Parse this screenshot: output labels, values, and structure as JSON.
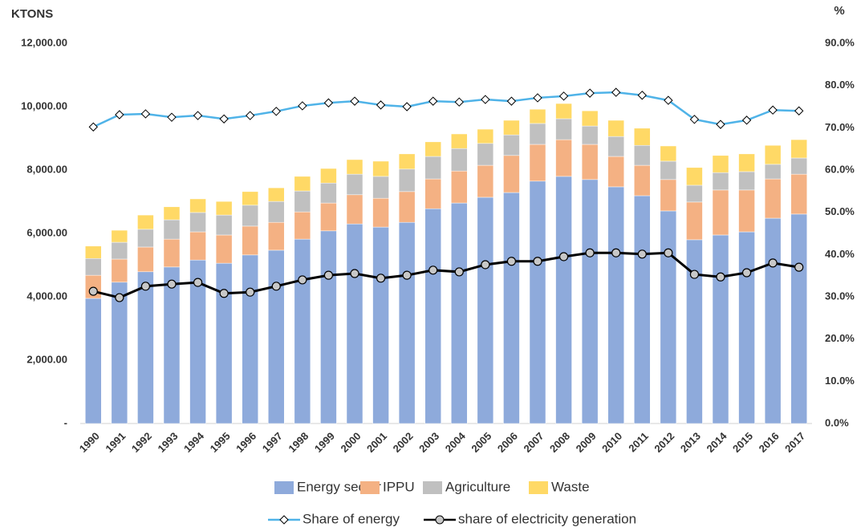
{
  "chart_data": {
    "type": "bar",
    "y_label": "KTONS",
    "y2_label": "%",
    "categories": [
      "1990",
      "1991",
      "1992",
      "1993",
      "1994",
      "1995",
      "1996",
      "1997",
      "1998",
      "1999",
      "2000",
      "2001",
      "2002",
      "2003",
      "2004",
      "2005",
      "2006",
      "2007",
      "2008",
      "2009",
      "2010",
      "2011",
      "2012",
      "2013",
      "2014",
      "2015",
      "2016",
      "2017"
    ],
    "ylim": [
      0,
      12000
    ],
    "yticks": [
      {
        "value": 0,
        "label": "-"
      },
      {
        "value": 2000,
        "label": "2,000.00"
      },
      {
        "value": 4000,
        "label": "4,000.00"
      },
      {
        "value": 6000,
        "label": "6,000.00"
      },
      {
        "value": 8000,
        "label": "8,000.00"
      },
      {
        "value": 10000,
        "label": "10,000.00"
      },
      {
        "value": 12000,
        "label": "12,000.00"
      }
    ],
    "y2lim": [
      0,
      90
    ],
    "y2ticks": [
      {
        "value": 0,
        "label": "0.0%"
      },
      {
        "value": 10,
        "label": "10.0%"
      },
      {
        "value": 20,
        "label": "20.0%"
      },
      {
        "value": 30,
        "label": "30.0%"
      },
      {
        "value": 40,
        "label": "40.0%"
      },
      {
        "value": 50,
        "label": "50.0%"
      },
      {
        "value": 60,
        "label": "60.0%"
      },
      {
        "value": 70,
        "label": "70.0%"
      },
      {
        "value": 80,
        "label": "80.0%"
      },
      {
        "value": 90,
        "label": "90.0%"
      }
    ],
    "grid": false,
    "series": [
      {
        "name": "Energy sector",
        "type": "bar",
        "color": "#8eaadb",
        "values": [
          3950,
          4460,
          4790,
          4940,
          5160,
          5060,
          5320,
          5470,
          5820,
          6080,
          6300,
          6200,
          6350,
          6780,
          6960,
          7140,
          7290,
          7650,
          7800,
          7700,
          7470,
          7190,
          6710,
          5800,
          5950,
          6050,
          6480,
          6610
        ]
      },
      {
        "name": "IPPU",
        "type": "bar",
        "color": "#f4b183",
        "values": [
          730,
          730,
          780,
          880,
          890,
          890,
          910,
          880,
          860,
          880,
          920,
          910,
          970,
          940,
          1010,
          1010,
          1170,
          1160,
          1160,
          1110,
          960,
          960,
          990,
          1190,
          1420,
          1320,
          1240,
          1260
        ]
      },
      {
        "name": "Agriculture",
        "type": "bar",
        "color": "#c0c0c0",
        "values": [
          530,
          530,
          560,
          610,
          610,
          630,
          660,
          660,
          660,
          630,
          650,
          690,
          710,
          710,
          710,
          690,
          650,
          660,
          660,
          580,
          630,
          630,
          580,
          530,
          550,
          580,
          460,
          510
        ]
      },
      {
        "name": "Waste",
        "type": "bar",
        "color": "#ffd966",
        "values": [
          390,
          380,
          450,
          410,
          430,
          430,
          430,
          430,
          460,
          460,
          460,
          480,
          480,
          460,
          460,
          450,
          460,
          450,
          480,
          480,
          510,
          540,
          480,
          560,
          540,
          560,
          600,
          580
        ]
      },
      {
        "name": "Share of energy",
        "type": "line",
        "axis": "y2",
        "marker": "diamond",
        "color": "#4fb3e8",
        "values": [
          70.2,
          73.1,
          73.3,
          72.5,
          72.9,
          72.1,
          72.9,
          73.9,
          75.2,
          75.9,
          76.3,
          75.4,
          75.0,
          76.3,
          76.1,
          76.7,
          76.3,
          77.1,
          77.5,
          78.2,
          78.4,
          77.7,
          76.5,
          72.0,
          70.8,
          71.8,
          74.2,
          74.0
        ]
      },
      {
        "name": "share of electricity generation",
        "type": "line",
        "axis": "y2",
        "marker": "circle",
        "color": "#000000",
        "values": [
          31.3,
          29.8,
          32.5,
          33.0,
          33.4,
          30.8,
          31.1,
          32.5,
          34.0,
          35.1,
          35.5,
          34.4,
          35.1,
          36.3,
          35.9,
          37.6,
          38.4,
          38.4,
          39.5,
          40.4,
          40.4,
          40.1,
          40.4,
          35.3,
          34.7,
          35.7,
          38.0,
          37.0
        ]
      }
    ]
  }
}
